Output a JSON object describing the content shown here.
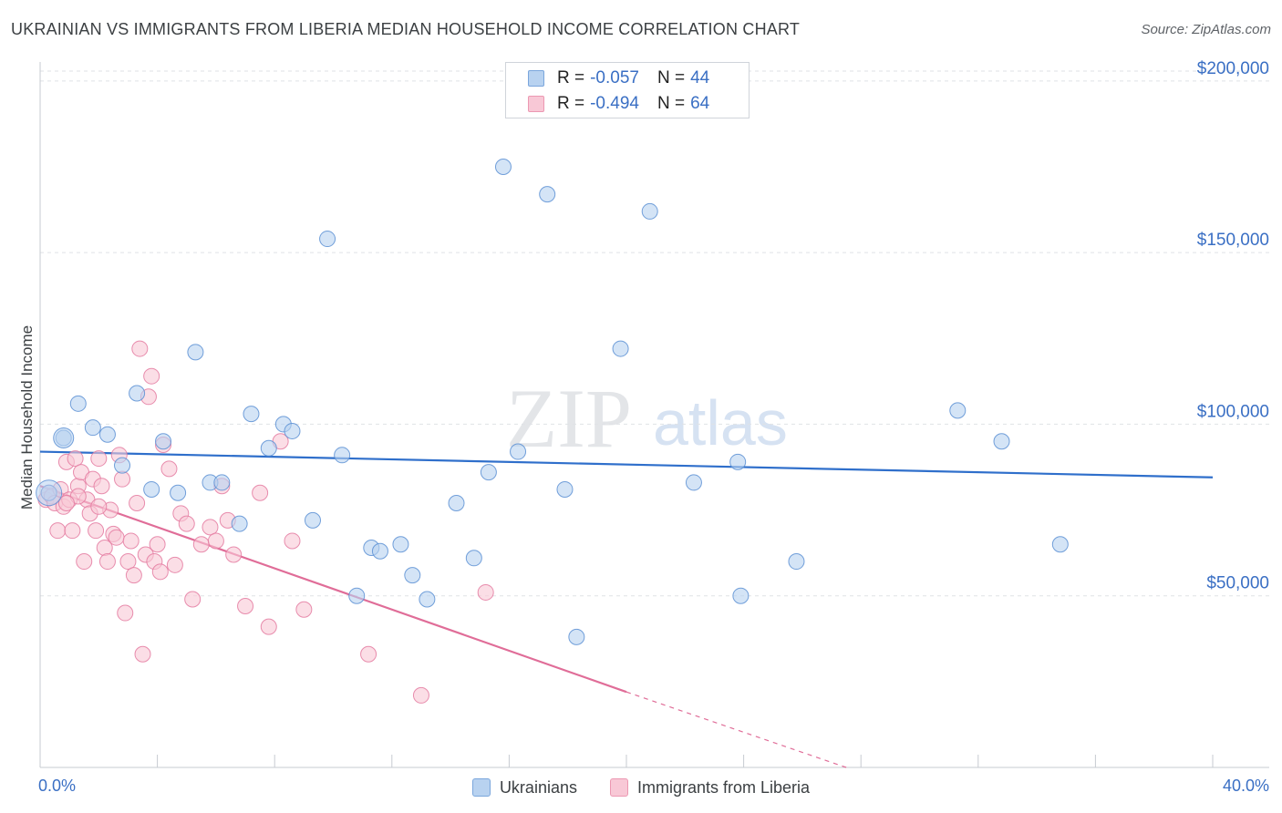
{
  "title": "UKRAINIAN VS IMMIGRANTS FROM LIBERIA MEDIAN HOUSEHOLD INCOME CORRELATION CHART",
  "source": "Source: ZipAtlas.com",
  "watermark": {
    "zip": "ZIP",
    "atlas": "atlas"
  },
  "legend_box": {
    "rows": [
      {
        "r_label": "R =",
        "r_value": "-0.057",
        "n_label": "N =",
        "n_value": "44",
        "fill": "#b8d2f0",
        "stroke": "#7aa6dc"
      },
      {
        "r_label": "R =",
        "r_value": "-0.494",
        "n_label": "N =",
        "n_value": "64",
        "fill": "#f8c8d6",
        "stroke": "#ec98b2"
      }
    ]
  },
  "bottom_legend": [
    {
      "label": "Ukrainians",
      "fill": "#b8d2f0",
      "stroke": "#7aa6dc"
    },
    {
      "label": "Immigrants from Liberia",
      "fill": "#f8c8d6",
      "stroke": "#ec98b2"
    }
  ],
  "chart_data": {
    "type": "scatter",
    "title": "UKRAINIAN VS IMMIGRANTS FROM LIBERIA MEDIAN HOUSEHOLD INCOME CORRELATION CHART",
    "xlabel": "",
    "ylabel": "Median Household Income",
    "xlim": [
      0,
      40
    ],
    "ylim": [
      0,
      205000
    ],
    "x_tick_labels": [
      "0.0%",
      "40.0%"
    ],
    "y_ticks": [
      50000,
      100000,
      150000,
      200000
    ],
    "y_tick_labels": [
      "$50,000",
      "$100,000",
      "$150,000",
      "$200,000"
    ],
    "grid": true,
    "legend_position": "top-center",
    "series": [
      {
        "name": "Ukrainians",
        "color": "#5b8fd4",
        "fill": "#b8d2f0",
        "trend": {
          "x": [
            0,
            40
          ],
          "y": [
            92000,
            84500
          ],
          "color": "#2f6fcb"
        },
        "points": [
          [
            0.3,
            80000
          ],
          [
            0.8,
            96000
          ],
          [
            1.3,
            106000
          ],
          [
            1.8,
            99000
          ],
          [
            2.3,
            97000
          ],
          [
            2.8,
            88000
          ],
          [
            3.3,
            109000
          ],
          [
            3.8,
            81000
          ],
          [
            4.2,
            95000
          ],
          [
            4.7,
            80000
          ],
          [
            5.3,
            121000
          ],
          [
            5.8,
            83000
          ],
          [
            6.2,
            83000
          ],
          [
            6.8,
            71000
          ],
          [
            7.2,
            103000
          ],
          [
            7.8,
            93000
          ],
          [
            8.3,
            100000
          ],
          [
            8.6,
            98000
          ],
          [
            9.3,
            72000
          ],
          [
            9.8,
            154000
          ],
          [
            10.3,
            91000
          ],
          [
            10.8,
            50000
          ],
          [
            11.3,
            64000
          ],
          [
            11.6,
            63000
          ],
          [
            12.3,
            65000
          ],
          [
            12.7,
            56000
          ],
          [
            13.2,
            49000
          ],
          [
            14.2,
            77000
          ],
          [
            14.8,
            61000
          ],
          [
            15.3,
            86000
          ],
          [
            15.8,
            175000
          ],
          [
            16.3,
            92000
          ],
          [
            17.3,
            167000
          ],
          [
            17.9,
            81000
          ],
          [
            18.3,
            38000
          ],
          [
            19.8,
            122000
          ],
          [
            20.8,
            162000
          ],
          [
            22.3,
            83000
          ],
          [
            23.8,
            89000
          ],
          [
            23.9,
            50000
          ],
          [
            25.8,
            60000
          ],
          [
            31.3,
            104000
          ],
          [
            32.8,
            95000
          ],
          [
            34.8,
            65000
          ]
        ]
      },
      {
        "name": "Immigrants from Liberia",
        "color": "#e47aa0",
        "fill": "#f8c8d6",
        "trend": {
          "x": [
            0,
            20
          ],
          "y": [
            82000,
            22000
          ],
          "dashed_to": [
            27.5,
            0
          ],
          "color": "#e06d98"
        },
        "points": [
          [
            0.2,
            78000
          ],
          [
            0.3,
            80000
          ],
          [
            0.4,
            79000
          ],
          [
            0.5,
            77000
          ],
          [
            0.6,
            69000
          ],
          [
            0.7,
            81000
          ],
          [
            0.8,
            76000
          ],
          [
            0.9,
            89000
          ],
          [
            1.0,
            78000
          ],
          [
            1.1,
            69000
          ],
          [
            1.2,
            90000
          ],
          [
            1.3,
            82000
          ],
          [
            1.4,
            86000
          ],
          [
            1.5,
            60000
          ],
          [
            1.6,
            78000
          ],
          [
            1.7,
            74000
          ],
          [
            1.8,
            84000
          ],
          [
            1.9,
            69000
          ],
          [
            2.0,
            90000
          ],
          [
            2.1,
            82000
          ],
          [
            2.2,
            64000
          ],
          [
            2.3,
            60000
          ],
          [
            2.4,
            75000
          ],
          [
            2.5,
            68000
          ],
          [
            2.6,
            67000
          ],
          [
            2.7,
            91000
          ],
          [
            2.8,
            84000
          ],
          [
            2.9,
            45000
          ],
          [
            3.0,
            60000
          ],
          [
            3.1,
            66000
          ],
          [
            3.2,
            56000
          ],
          [
            3.3,
            77000
          ],
          [
            3.4,
            122000
          ],
          [
            3.5,
            33000
          ],
          [
            3.6,
            62000
          ],
          [
            3.7,
            108000
          ],
          [
            3.8,
            114000
          ],
          [
            3.9,
            60000
          ],
          [
            4.0,
            65000
          ],
          [
            4.1,
            57000
          ],
          [
            4.2,
            94000
          ],
          [
            4.4,
            87000
          ],
          [
            4.6,
            59000
          ],
          [
            4.8,
            74000
          ],
          [
            5.0,
            71000
          ],
          [
            5.2,
            49000
          ],
          [
            5.5,
            65000
          ],
          [
            5.8,
            70000
          ],
          [
            6.0,
            66000
          ],
          [
            6.2,
            82000
          ],
          [
            6.4,
            72000
          ],
          [
            6.6,
            62000
          ],
          [
            7.0,
            47000
          ],
          [
            7.5,
            80000
          ],
          [
            7.8,
            41000
          ],
          [
            8.2,
            95000
          ],
          [
            8.6,
            66000
          ],
          [
            9.0,
            46000
          ],
          [
            11.2,
            33000
          ],
          [
            13.0,
            21000
          ],
          [
            15.2,
            51000
          ],
          [
            2.0,
            76000
          ],
          [
            1.3,
            79000
          ],
          [
            0.9,
            77000
          ]
        ]
      }
    ]
  }
}
